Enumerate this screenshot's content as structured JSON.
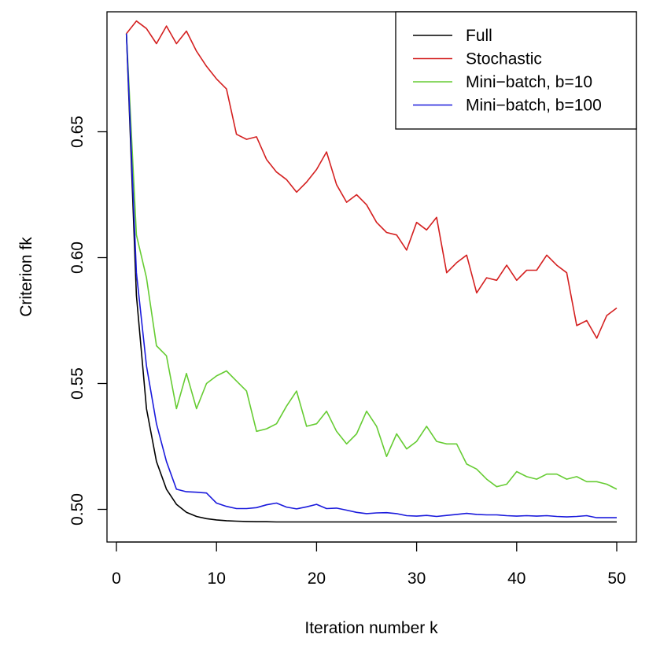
{
  "chart_data": {
    "type": "line",
    "title": "",
    "xlabel": "Iteration number k",
    "ylabel": "Criterion fk",
    "xlim": [
      0,
      50
    ],
    "ylim": [
      0.49,
      0.697
    ],
    "xticks": [
      0,
      10,
      20,
      30,
      40,
      50
    ],
    "yticks": [
      0.5,
      0.55,
      0.6,
      0.65
    ],
    "ytick_labels": [
      "0.50",
      "0.55",
      "0.60",
      "0.65"
    ],
    "grid": false,
    "legend_position": "top-right",
    "x": [
      1,
      2,
      3,
      4,
      5,
      6,
      7,
      8,
      9,
      10,
      11,
      12,
      13,
      14,
      15,
      16,
      17,
      18,
      19,
      20,
      21,
      22,
      23,
      24,
      25,
      26,
      27,
      28,
      29,
      30,
      31,
      32,
      33,
      34,
      35,
      36,
      37,
      38,
      39,
      40,
      41,
      42,
      43,
      44,
      45,
      46,
      47,
      48,
      49,
      50
    ],
    "series": [
      {
        "name": "Full",
        "color": "#000000",
        "values": [
          0.689,
          0.585,
          0.54,
          0.519,
          0.508,
          0.502,
          0.4988,
          0.4972,
          0.4963,
          0.4958,
          0.4955,
          0.4953,
          0.4952,
          0.4951,
          0.4951,
          0.495,
          0.495,
          0.495,
          0.495,
          0.495,
          0.495,
          0.495,
          0.495,
          0.495,
          0.495,
          0.495,
          0.495,
          0.495,
          0.495,
          0.495,
          0.495,
          0.495,
          0.495,
          0.495,
          0.495,
          0.495,
          0.495,
          0.495,
          0.495,
          0.495,
          0.495,
          0.495,
          0.495,
          0.495,
          0.495,
          0.495,
          0.495,
          0.495,
          0.495,
          0.495
        ]
      },
      {
        "name": "Stochastic",
        "color": "#d42020",
        "values": [
          0.689,
          0.694,
          0.691,
          0.685,
          0.692,
          0.685,
          0.69,
          0.682,
          0.676,
          0.671,
          0.667,
          0.649,
          0.647,
          0.648,
          0.639,
          0.634,
          0.631,
          0.626,
          0.63,
          0.635,
          0.642,
          0.629,
          0.622,
          0.625,
          0.621,
          0.614,
          0.61,
          0.609,
          0.603,
          0.614,
          0.611,
          0.616,
          0.594,
          0.598,
          0.601,
          0.586,
          0.592,
          0.591,
          0.597,
          0.591,
          0.595,
          0.595,
          0.601,
          0.597,
          0.594,
          0.573,
          0.575,
          0.568,
          0.577,
          0.58
        ]
      },
      {
        "name": "Mini−batch, b=10",
        "color": "#66cc33",
        "values": [
          0.689,
          0.609,
          0.592,
          0.565,
          0.561,
          0.54,
          0.554,
          0.54,
          0.55,
          0.553,
          0.555,
          0.551,
          0.547,
          0.531,
          0.532,
          0.534,
          0.541,
          0.547,
          0.533,
          0.534,
          0.539,
          0.531,
          0.526,
          0.53,
          0.539,
          0.533,
          0.521,
          0.53,
          0.524,
          0.527,
          0.533,
          0.527,
          0.526,
          0.526,
          0.518,
          0.516,
          0.512,
          0.509,
          0.51,
          0.515,
          0.513,
          0.512,
          0.514,
          0.514,
          0.512,
          0.513,
          0.511,
          0.511,
          0.51,
          0.508
        ]
      },
      {
        "name": "Mini−batch, b=100",
        "color": "#1a1adc",
        "values": [
          0.689,
          0.594,
          0.557,
          0.534,
          0.519,
          0.508,
          0.507,
          0.5068,
          0.5065,
          0.5025,
          0.5012,
          0.5003,
          0.5003,
          0.5007,
          0.5018,
          0.5025,
          0.5009,
          0.5002,
          0.501,
          0.502,
          0.5003,
          0.5005,
          0.4997,
          0.4988,
          0.4983,
          0.4986,
          0.4987,
          0.4983,
          0.4975,
          0.4973,
          0.4976,
          0.4972,
          0.4976,
          0.498,
          0.4984,
          0.498,
          0.4978,
          0.4978,
          0.4975,
          0.4973,
          0.4975,
          0.4973,
          0.4975,
          0.4972,
          0.497,
          0.4972,
          0.4975,
          0.4967,
          0.4967,
          0.4967
        ]
      }
    ]
  }
}
